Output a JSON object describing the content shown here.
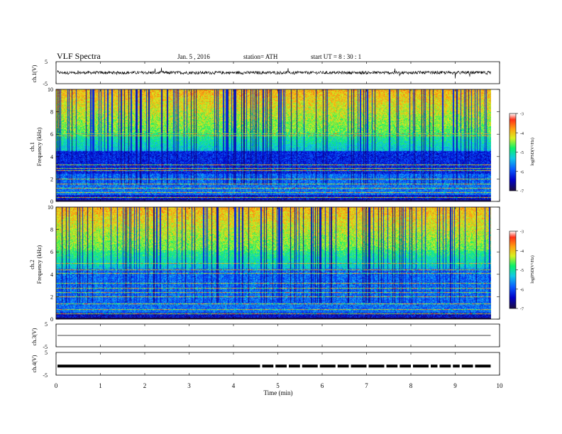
{
  "header": {
    "title": "VLF  Spectra",
    "date": "Jan.  5  , 2016",
    "station": "station= ATH",
    "start_ut": "start  UT  =   8  : 30 : 1"
  },
  "panels": {
    "ch1_wave_label": "ch.1(V)",
    "ch1_spec_label_a": "ch.1",
    "ch1_spec_label_b": "Frequency  (kHz)",
    "ch2_spec_label_a": "ch.2",
    "ch2_spec_label_b": "Frequency  (kHz)",
    "ch3_wave_label": "ch.3(V)",
    "ch4_wave_label": "ch.4(V)",
    "colorbar_label": "log(PSD(V²/Hz)"
  },
  "colors": {
    "scale": [
      "#1c0d3f",
      "#0000c8",
      "#0a5cff",
      "#12c8e6",
      "#0af06a",
      "#d8f020",
      "#ffa010",
      "#ff3018",
      "#ffffff"
    ]
  },
  "chart_data": [
    {
      "type": "line",
      "name": "ch.1 waveform",
      "ylabel": "ch.1(V)",
      "ylim": [
        -5,
        5
      ],
      "yticks": [
        -5,
        5
      ],
      "xlim": [
        0,
        10
      ],
      "xticks": [
        0,
        1,
        2,
        3,
        4,
        5,
        6,
        7,
        8,
        9,
        10
      ],
      "data_end": 9.8,
      "mean": 0
    },
    {
      "type": "heatmap",
      "name": "ch.1 spectrogram",
      "ylabel": "Frequency  (kHz)",
      "ylim": [
        0,
        10
      ],
      "yticks": [
        0,
        2,
        4,
        6,
        8,
        10
      ],
      "xlim": [
        0,
        10
      ],
      "data_end": 9.8,
      "colorbar": {
        "label": "log(PSD(V²/Hz)",
        "ticks": [
          -7,
          -6,
          -5,
          -4,
          -3
        ],
        "range": [
          -7,
          -3
        ]
      }
    },
    {
      "type": "heatmap",
      "name": "ch.2 spectrogram",
      "ylabel": "Frequency  (kHz)",
      "ylim": [
        0,
        10
      ],
      "yticks": [
        0,
        2,
        4,
        6,
        8,
        10
      ],
      "xlim": [
        0,
        10
      ],
      "data_end": 9.8,
      "colorbar": {
        "label": "log(PSD(V²/Hz)",
        "ticks": [
          -7,
          -6,
          -5,
          -4,
          -3
        ],
        "range": [
          -7,
          -3
        ]
      }
    },
    {
      "type": "line",
      "name": "ch.3 waveform",
      "ylabel": "ch.3(V)",
      "ylim": [
        -5,
        5
      ],
      "yticks": [
        -5,
        5
      ],
      "xlim": [
        0,
        10
      ],
      "data_end": 9.8,
      "mean": 0
    },
    {
      "type": "line",
      "name": "ch.4 waveform",
      "ylabel": "ch.4(V)",
      "ylim": [
        -5,
        5
      ],
      "yticks": [
        -5,
        5
      ],
      "xlim": [
        0,
        10
      ],
      "xticks": [
        0,
        1,
        2,
        3,
        4,
        5,
        6,
        7,
        8,
        9,
        10
      ],
      "xlabel": "Time  (min)",
      "data_end": 9.8,
      "mean": -1
    }
  ]
}
